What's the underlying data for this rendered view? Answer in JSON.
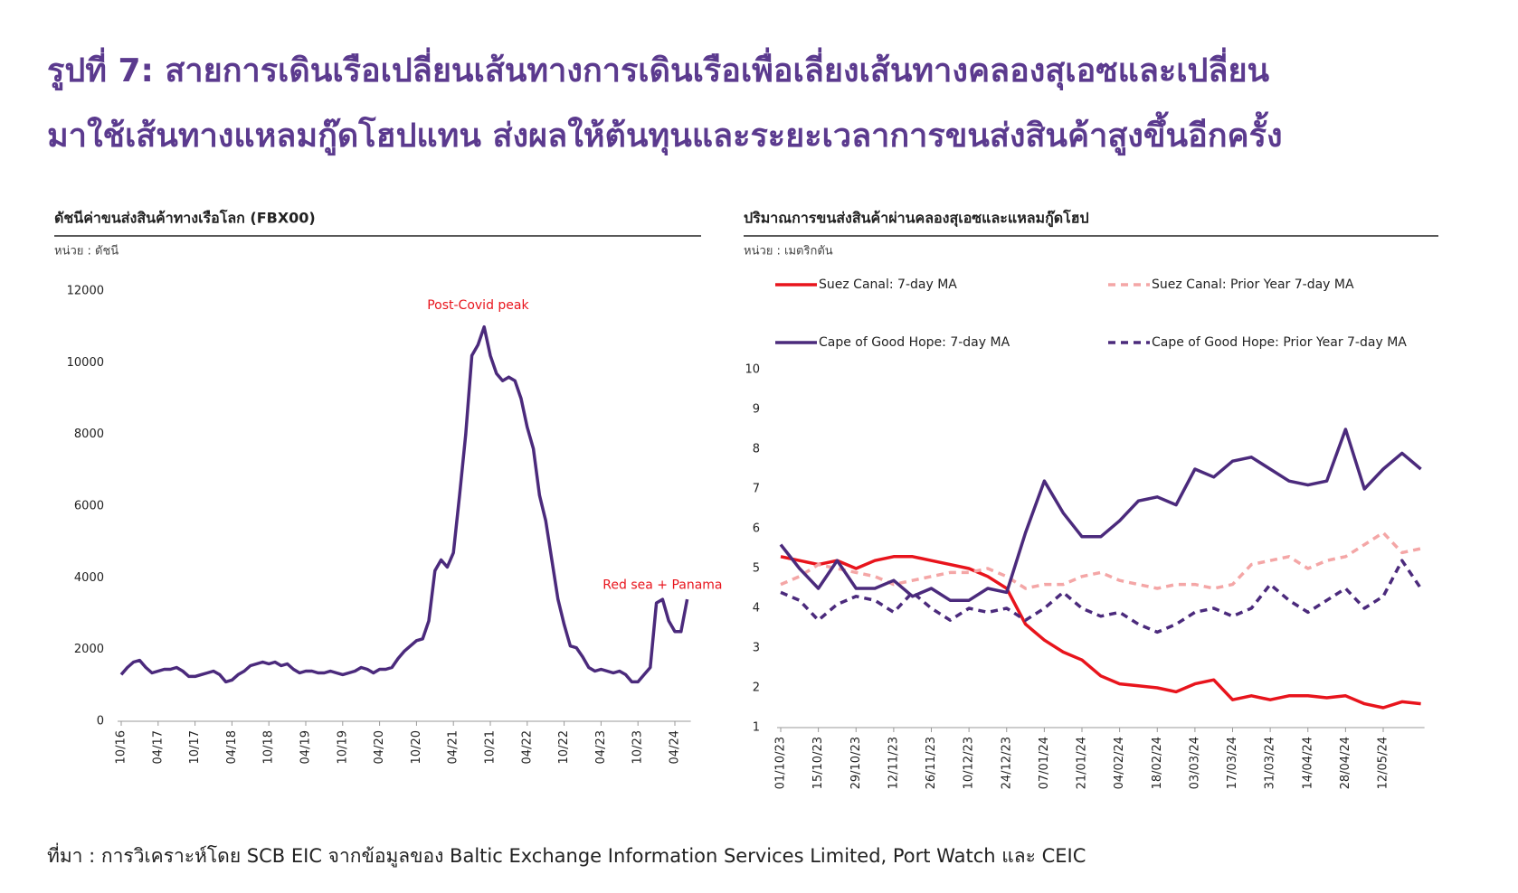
{
  "header": {
    "title_line1": "รูปที่ 7: สายการเดินเรือเปลี่ยนเส้นทางการเดินเรือเพื่อเลี่ยงเส้นทางคลองสุเอซและเปลี่ยน",
    "title_line2": "มาใช้เส้นทางแหลมกู๊ดโฮปแทน ส่งผลให้ต้นทุนและระยะเวลาการขนส่งสินค้าสูงขึ้นอีกครั้ง"
  },
  "chart_data": [
    {
      "type": "line",
      "title": "ดัชนีค่าขนส่งสินค้าทางเรือโลก (FBX00)",
      "unit": "หน่วย : ดัชนี",
      "categories": [
        "10/16",
        null,
        null,
        null,
        null,
        null,
        "04/17",
        null,
        null,
        null,
        null,
        null,
        "10/17",
        null,
        null,
        null,
        null,
        null,
        "04/18",
        null,
        null,
        null,
        null,
        null,
        "10/18",
        null,
        null,
        null,
        null,
        null,
        "04/19",
        null,
        null,
        null,
        null,
        null,
        "10/19",
        null,
        null,
        null,
        null,
        null,
        "04/20",
        null,
        null,
        null,
        null,
        null,
        "10/20",
        null,
        null,
        null,
        null,
        null,
        "04/21",
        null,
        null,
        null,
        null,
        null,
        "10/21",
        null,
        null,
        null,
        null,
        null,
        "04/22",
        null,
        null,
        null,
        null,
        null,
        "10/22",
        null,
        null,
        null,
        null,
        null,
        "04/23",
        null,
        null,
        null,
        null,
        null,
        "10/23",
        null,
        null,
        null,
        null,
        null,
        "04/24",
        null,
        null
      ],
      "series": [
        {
          "name": "FBX00",
          "color": "#4b2a7c",
          "dashed": false,
          "values": [
            1300,
            1500,
            1650,
            1700,
            1500,
            1350,
            1400,
            1450,
            1450,
            1500,
            1400,
            1250,
            1250,
            1300,
            1350,
            1400,
            1300,
            1100,
            1150,
            1300,
            1400,
            1550,
            1600,
            1650,
            1600,
            1650,
            1550,
            1600,
            1450,
            1350,
            1400,
            1400,
            1350,
            1350,
            1400,
            1350,
            1300,
            1350,
            1400,
            1500,
            1450,
            1350,
            1450,
            1450,
            1500,
            1750,
            1950,
            2100,
            2250,
            2300,
            2800,
            4200,
            4500,
            4300,
            4700,
            6300,
            8000,
            10200,
            10500,
            11000,
            10200,
            9700,
            9500,
            9600,
            9500,
            9000,
            8200,
            7600,
            6300,
            5600,
            4500,
            3400,
            2700,
            2100,
            2050,
            1800,
            1500,
            1400,
            1450,
            1400,
            1350,
            1400,
            1300,
            1100,
            1100,
            1300,
            1500,
            3300,
            3400,
            2800,
            2500,
            2500,
            3400
          ]
        }
      ],
      "ylim": [
        0,
        12000
      ],
      "yticks": [
        0,
        2000,
        4000,
        6000,
        8000,
        10000,
        12000
      ],
      "legend": false,
      "annotations": [
        {
          "text": "Post-Covid peak",
          "color": "#e8141c",
          "x": 58,
          "y": 11600
        },
        {
          "text": "Red sea + Panama",
          "color": "#e8141c",
          "x": 88,
          "y": 3800
        }
      ]
    },
    {
      "type": "line",
      "title": "ปริมาณการขนส่งสินค้าผ่านคลองสุเอซและแหลมกู๊ดโฮป",
      "unit": "หน่วย : เมตริกตัน",
      "categories": [
        "01/10/23",
        null,
        "15/10/23",
        null,
        "29/10/23",
        null,
        "12/11/23",
        null,
        "26/11/23",
        null,
        "10/12/23",
        null,
        "24/12/23",
        null,
        "07/01/24",
        null,
        "21/01/24",
        null,
        "04/02/24",
        null,
        "18/02/24",
        null,
        "03/03/24",
        null,
        "17/03/24",
        null,
        "31/03/24",
        null,
        "14/04/24",
        null,
        "28/04/24",
        null,
        "12/05/24",
        null,
        null
      ],
      "series": [
        {
          "name": "Suez Canal: 7-day MA",
          "color": "#e8141c",
          "dashed": false,
          "values": [
            5.3,
            5.2,
            5.1,
            5.2,
            5.0,
            5.2,
            5.3,
            5.3,
            5.2,
            5.1,
            5.0,
            4.8,
            4.5,
            3.6,
            3.2,
            2.9,
            2.7,
            2.3,
            2.1,
            2.05,
            2.0,
            1.9,
            2.1,
            2.2,
            1.7,
            1.8,
            1.7,
            1.8,
            1.8,
            1.75,
            1.8,
            1.6,
            1.5,
            1.65,
            1.6
          ]
        },
        {
          "name": "Suez Canal: Prior Year 7-day MA",
          "color": "#f4a6a6",
          "dashed": true,
          "values": [
            4.6,
            4.8,
            5.1,
            5.0,
            4.9,
            4.8,
            4.6,
            4.7,
            4.8,
            4.9,
            4.9,
            5.0,
            4.8,
            4.5,
            4.6,
            4.6,
            4.8,
            4.9,
            4.7,
            4.6,
            4.5,
            4.6,
            4.6,
            4.5,
            4.6,
            5.1,
            5.2,
            5.3,
            5.0,
            5.2,
            5.3,
            5.6,
            5.9,
            5.4,
            5.5
          ]
        },
        {
          "name": "Cape of Good Hope: 7-day MA",
          "color": "#4b2a7c",
          "dashed": false,
          "values": [
            5.6,
            5.0,
            4.5,
            5.2,
            4.5,
            4.5,
            4.7,
            4.3,
            4.5,
            4.2,
            4.2,
            4.5,
            4.4,
            5.9,
            7.2,
            6.4,
            5.8,
            5.8,
            6.2,
            6.7,
            6.8,
            6.6,
            7.5,
            7.3,
            7.7,
            7.8,
            7.5,
            7.2,
            7.1,
            7.2,
            8.5,
            7.0,
            7.5,
            7.9,
            7.5
          ]
        },
        {
          "name": "Cape of Good Hope: Prior Year 7-day MA",
          "color": "#4b2a7c",
          "dashed": true,
          "values": [
            4.4,
            4.2,
            3.7,
            4.1,
            4.3,
            4.2,
            3.9,
            4.4,
            4.0,
            3.7,
            4.0,
            3.9,
            4.0,
            3.7,
            4.0,
            4.4,
            4.0,
            3.8,
            3.9,
            3.6,
            3.4,
            3.6,
            3.9,
            4.0,
            3.8,
            4.0,
            4.6,
            4.2,
            3.9,
            4.2,
            4.5,
            4.0,
            4.3,
            5.2,
            4.5
          ]
        }
      ],
      "ylim": [
        1,
        10
      ],
      "yticks": [
        1,
        2,
        3,
        4,
        5,
        6,
        7,
        8,
        9,
        10
      ],
      "legend": true
    }
  ],
  "source": "ที่มา : การวิเคราะห์โดย SCB EIC จากข้อมูลของ Baltic Exchange Information Services Limited, Port Watch และ CEIC"
}
